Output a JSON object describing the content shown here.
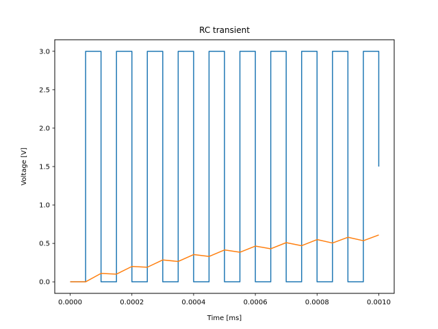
{
  "chart_data": {
    "type": "line",
    "title": "RC transient",
    "xlabel": "Time [ms]",
    "ylabel": "Voltage [V]",
    "xlim": [
      -5e-05,
      0.00105
    ],
    "ylim": [
      -0.15,
      3.15
    ],
    "xticks": [
      0,
      0.0002,
      0.0004,
      0.0006,
      0.0008,
      0.001
    ],
    "xtick_labels": [
      "0.0000",
      "0.0002",
      "0.0004",
      "0.0006",
      "0.0008",
      "0.0010"
    ],
    "yticks": [
      0,
      0.5,
      1,
      1.5,
      2,
      2.5,
      3
    ],
    "ytick_labels": [
      "0.0",
      "0.5",
      "1.0",
      "1.5",
      "2.0",
      "2.5",
      "3.0"
    ],
    "grid": false,
    "series": [
      {
        "color": "#1f77b4",
        "x": [
          0,
          5e-05,
          5e-05,
          0.0001,
          0.0001,
          0.00015,
          0.00015,
          0.0002,
          0.0002,
          0.00025,
          0.00025,
          0.0003,
          0.0003,
          0.00035,
          0.00035,
          0.0004,
          0.0004,
          0.00045,
          0.00045,
          0.0005,
          0.0005,
          0.00055,
          0.00055,
          0.0006,
          0.0006,
          0.00065,
          0.00065,
          0.0007,
          0.0007,
          0.00075,
          0.00075,
          0.0008,
          0.0008,
          0.00085,
          0.00085,
          0.0009,
          0.0009,
          0.00095,
          0.00095,
          0.001,
          0.001
        ],
        "y": [
          0,
          0,
          3,
          3,
          0,
          0,
          3,
          3,
          0,
          0,
          3,
          3,
          0,
          0,
          3,
          3,
          0,
          0,
          3,
          3,
          0,
          0,
          3,
          3,
          0,
          0,
          3,
          3,
          0,
          0,
          3,
          3,
          0,
          0,
          3,
          3,
          0,
          0,
          3,
          3,
          1.5
        ]
      },
      {
        "color": "#ff7f0e",
        "x": [
          0,
          5e-05,
          0.0001,
          0.00015,
          0.0002,
          0.00025,
          0.0003,
          0.00035,
          0.0004,
          0.00045,
          0.0005,
          0.00055,
          0.0006,
          0.00065,
          0.0007,
          0.00075,
          0.0008,
          0.00085,
          0.0009,
          0.00095,
          0.001
        ],
        "y": [
          0,
          0,
          0.11,
          0.1,
          0.2,
          0.19,
          0.285,
          0.265,
          0.355,
          0.33,
          0.415,
          0.385,
          0.465,
          0.43,
          0.51,
          0.47,
          0.55,
          0.505,
          0.58,
          0.535,
          0.61
        ]
      }
    ]
  }
}
